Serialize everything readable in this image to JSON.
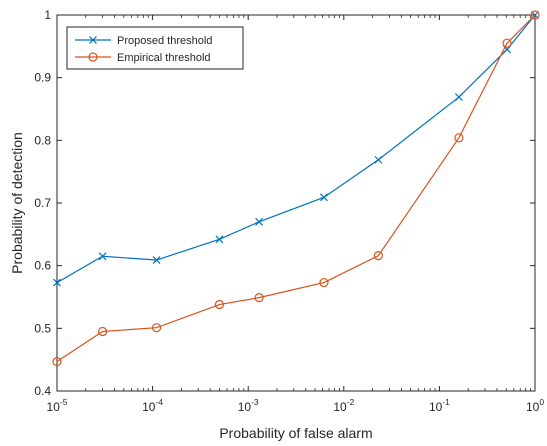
{
  "chart_data": {
    "type": "line",
    "title": "",
    "xlabel": "Probability of false alarm",
    "ylabel": "Probability of detection",
    "xscale": "log",
    "xlim": [
      1e-05,
      1
    ],
    "ylim": [
      0.4,
      1
    ],
    "xticks": [
      {
        "value": 1e-05,
        "base": "10",
        "exp": "-5"
      },
      {
        "value": 0.0001,
        "base": "10",
        "exp": "-4"
      },
      {
        "value": 0.001,
        "base": "10",
        "exp": "-3"
      },
      {
        "value": 0.01,
        "base": "10",
        "exp": "-2"
      },
      {
        "value": 0.1,
        "base": "10",
        "exp": "-1"
      },
      {
        "value": 1,
        "base": "10",
        "exp": "0"
      }
    ],
    "yticks": [
      {
        "value": 0.4,
        "label": "0.4"
      },
      {
        "value": 0.5,
        "label": "0.5"
      },
      {
        "value": 0.6,
        "label": "0.6"
      },
      {
        "value": 0.7,
        "label": "0.7"
      },
      {
        "value": 0.8,
        "label": "0.8"
      },
      {
        "value": 0.9,
        "label": "0.9"
      },
      {
        "value": 1,
        "label": "1"
      }
    ],
    "grid": false,
    "legend": "top-left",
    "series": [
      {
        "name": "Proposed threshold",
        "color": "#0072bd",
        "marker": "x",
        "x": [
          1e-05,
          3e-05,
          0.00011,
          0.0005,
          0.0013,
          0.0062,
          0.023,
          0.16,
          0.51,
          1
        ],
        "y": [
          0.573,
          0.615,
          0.609,
          0.642,
          0.67,
          0.709,
          0.769,
          0.869,
          0.945,
          1.0
        ]
      },
      {
        "name": "Empirical threshold",
        "color": "#d95319",
        "marker": "circle",
        "x": [
          1e-05,
          3e-05,
          0.00011,
          0.0005,
          0.0013,
          0.0062,
          0.023,
          0.16,
          0.51,
          1
        ],
        "y": [
          0.447,
          0.495,
          0.501,
          0.538,
          0.549,
          0.573,
          0.616,
          0.804,
          0.955,
          1.0
        ]
      }
    ]
  }
}
